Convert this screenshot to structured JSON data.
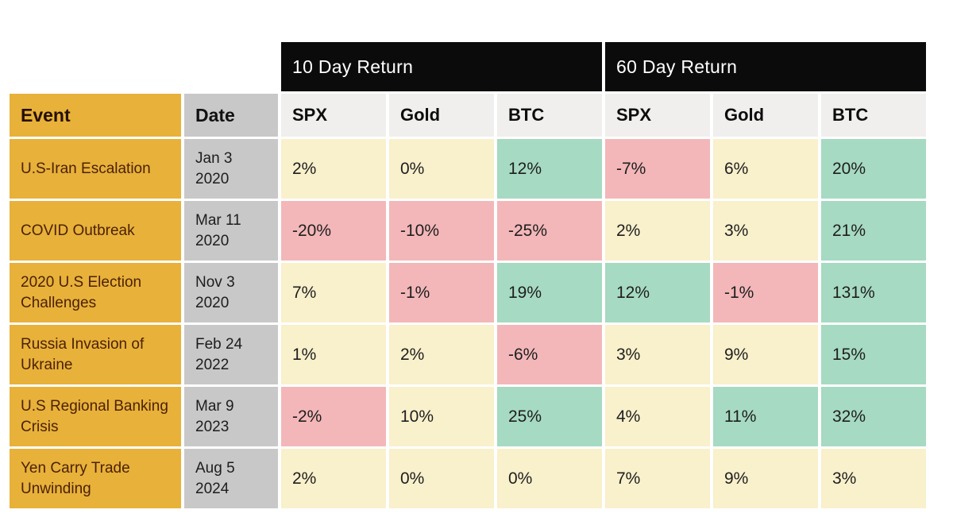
{
  "colors": {
    "black": "#0b0b0b",
    "gold": "#e8b13a",
    "gray": "#c8c8c8",
    "header_gray": "#f0efed",
    "cream": "#f9f0cc",
    "green": "#a6dac2",
    "pink": "#f3b7b9"
  },
  "chart_data": {
    "type": "table",
    "group_headers": [
      "10 Day Return",
      "60 Day Return"
    ],
    "columns": [
      "Event",
      "Date",
      "SPX",
      "Gold",
      "BTC",
      "SPX",
      "Gold",
      "BTC"
    ],
    "legend_note_tones": [
      "cream = flat/modest",
      "green = positive",
      "pink = negative"
    ],
    "rows": [
      {
        "event": "U.S-Iran Escalation",
        "date": "Jan 3\n2020",
        "returns": [
          {
            "v": "2%",
            "tone": "cream"
          },
          {
            "v": "0%",
            "tone": "cream"
          },
          {
            "v": "12%",
            "tone": "green"
          },
          {
            "v": "-7%",
            "tone": "pink"
          },
          {
            "v": "6%",
            "tone": "cream"
          },
          {
            "v": "20%",
            "tone": "green"
          }
        ]
      },
      {
        "event": "COVID Outbreak",
        "date": "Mar 11\n2020",
        "returns": [
          {
            "v": "-20%",
            "tone": "pink"
          },
          {
            "v": "-10%",
            "tone": "pink"
          },
          {
            "v": "-25%",
            "tone": "pink"
          },
          {
            "v": "2%",
            "tone": "cream"
          },
          {
            "v": "3%",
            "tone": "cream"
          },
          {
            "v": "21%",
            "tone": "green"
          }
        ]
      },
      {
        "event": "2020 U.S Election Challenges",
        "date": "Nov 3\n2020",
        "returns": [
          {
            "v": "7%",
            "tone": "cream"
          },
          {
            "v": "-1%",
            "tone": "pink"
          },
          {
            "v": "19%",
            "tone": "green"
          },
          {
            "v": "12%",
            "tone": "green"
          },
          {
            "v": "-1%",
            "tone": "pink"
          },
          {
            "v": "131%",
            "tone": "green"
          }
        ]
      },
      {
        "event": "Russia Invasion of Ukraine",
        "date": "Feb 24\n2022",
        "returns": [
          {
            "v": "1%",
            "tone": "cream"
          },
          {
            "v": "2%",
            "tone": "cream"
          },
          {
            "v": "-6%",
            "tone": "pink"
          },
          {
            "v": "3%",
            "tone": "cream"
          },
          {
            "v": "9%",
            "tone": "cream"
          },
          {
            "v": "15%",
            "tone": "green"
          }
        ]
      },
      {
        "event": "U.S Regional Banking Crisis",
        "date": "Mar 9\n2023",
        "returns": [
          {
            "v": "-2%",
            "tone": "pink"
          },
          {
            "v": "10%",
            "tone": "cream"
          },
          {
            "v": "25%",
            "tone": "green"
          },
          {
            "v": "4%",
            "tone": "cream"
          },
          {
            "v": "11%",
            "tone": "green"
          },
          {
            "v": "32%",
            "tone": "green"
          }
        ]
      },
      {
        "event": "Yen Carry Trade Unwinding",
        "date": "Aug 5\n2024",
        "returns": [
          {
            "v": "2%",
            "tone": "cream"
          },
          {
            "v": "0%",
            "tone": "cream"
          },
          {
            "v": "0%",
            "tone": "cream"
          },
          {
            "v": "7%",
            "tone": "cream"
          },
          {
            "v": "9%",
            "tone": "cream"
          },
          {
            "v": "3%",
            "tone": "cream"
          }
        ]
      }
    ]
  }
}
